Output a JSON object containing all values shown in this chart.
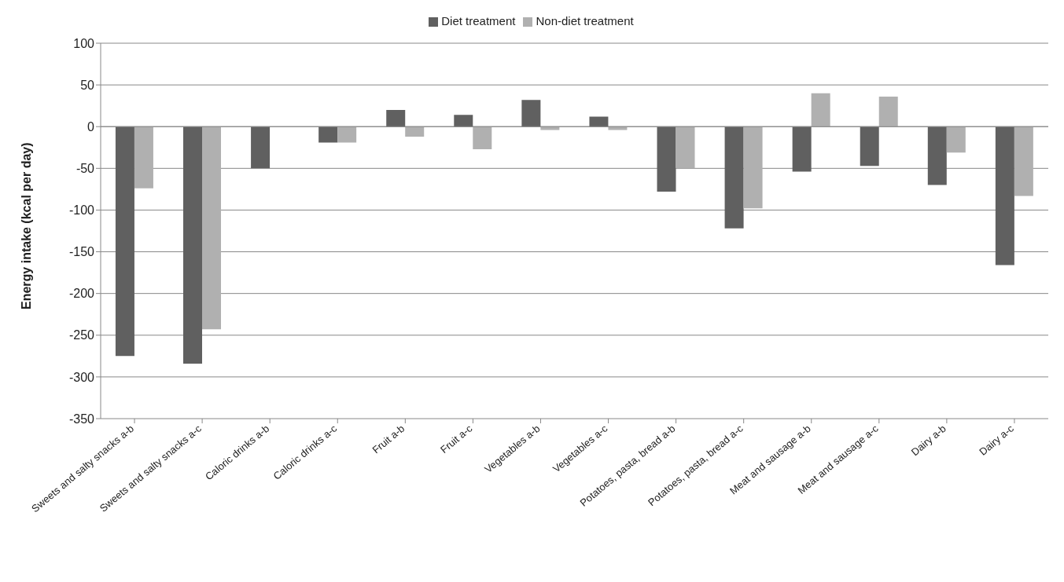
{
  "chart_data": {
    "type": "bar",
    "ylabel": "Energy intake (kcal per day)",
    "categories": [
      "Sweets and salty snacks a-b",
      "Sweets and salty snacks a-c",
      "Caloric drinks a-b",
      "Caloric drinks a-c",
      "Fruit a-b",
      "Fruit a-c",
      "Vegetables a-b",
      "Vegetables a-c",
      "Potatoes, pasta, bread a-b",
      "Potatoes, pasta, bread a-c",
      "Meat and sausage a-b",
      "Meat and sausage a-c",
      "Dairy a-b",
      "Dairy a-c"
    ],
    "series": [
      {
        "name": "Diet treatment",
        "color": "#606060",
        "values": [
          -275,
          -284,
          -50,
          -19,
          20,
          14,
          32,
          12,
          -78,
          -122,
          -54,
          -47,
          -70,
          -166
        ]
      },
      {
        "name": "Non-diet treatment",
        "color": "#b0b0b0",
        "values": [
          -74,
          -243,
          0,
          -19,
          -12,
          -27,
          -4,
          -4,
          -50,
          -98,
          40,
          36,
          -31,
          -83
        ]
      }
    ],
    "ylim": [
      -350,
      100
    ],
    "yticks": [
      -350,
      -300,
      -250,
      -200,
      -150,
      -100,
      -50,
      0,
      50,
      100
    ],
    "grid": "y",
    "legend": "top"
  }
}
